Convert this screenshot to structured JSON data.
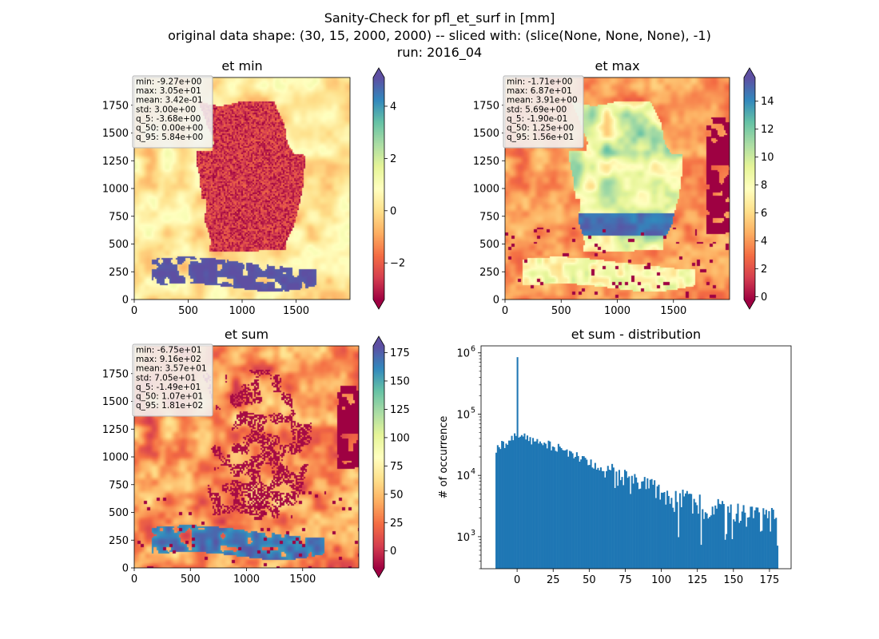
{
  "figure": {
    "suptitle": [
      "Sanity-Check for pfl_et_surf in [mm]",
      "original data shape: (30, 15, 2000, 2000) -- sliced with: (slice(None, None, None), -1)",
      "run: 2016_04"
    ]
  },
  "chart_data": [
    {
      "type": "heatmap",
      "title": "et min",
      "colormap": "Spectral",
      "colorbar_extend": "both",
      "xlim": [
        0,
        2000
      ],
      "ylim": [
        0,
        2000
      ],
      "xticks": [
        0,
        500,
        1000,
        1500
      ],
      "yticks": [
        0,
        250,
        500,
        750,
        1000,
        1250,
        1500,
        1750
      ],
      "clim": [
        -3.4,
        5.1
      ],
      "colorbar_ticks": [
        -2,
        0,
        2,
        4
      ],
      "stats": [
        "min: -9.27e+00",
        "max: 3.05e+01",
        "mean: 3.42e-01",
        "std: 3.00e+00",
        "q_5: -3.68e+00",
        "q_50: 0.00e+00",
        "q_95: 5.84e+00"
      ],
      "pattern": "min"
    },
    {
      "type": "heatmap",
      "title": "et max",
      "colormap": "Spectral",
      "colorbar_extend": "both",
      "xlim": [
        0,
        2000
      ],
      "ylim": [
        0,
        2000
      ],
      "xticks": [
        0,
        500,
        1000,
        1500
      ],
      "yticks": [
        0,
        250,
        500,
        750,
        1000,
        1250,
        1500,
        1750
      ],
      "clim": [
        -0.2,
        15.7
      ],
      "colorbar_ticks": [
        0,
        2,
        4,
        6,
        8,
        10,
        12,
        14
      ],
      "stats": [
        "min: -1.71e+00",
        "max: 6.87e+01",
        "mean: 3.91e+00",
        "std: 5.69e+00",
        "q_5: -1.90e-01",
        "q_50: 1.25e+00",
        "q_95: 1.56e+01"
      ],
      "pattern": "max"
    },
    {
      "type": "heatmap",
      "title": "et sum",
      "colormap": "Spectral",
      "colorbar_extend": "both",
      "xlim": [
        0,
        2000
      ],
      "ylim": [
        0,
        2000
      ],
      "xticks": [
        0,
        500,
        1000,
        1500
      ],
      "yticks": [
        0,
        250,
        500,
        750,
        1000,
        1250,
        1500,
        1750
      ],
      "clim": [
        -15,
        181
      ],
      "colorbar_ticks": [
        0,
        25,
        50,
        75,
        100,
        125,
        150,
        175
      ],
      "stats": [
        "min: -6.75e+01",
        "max: 9.16e+02",
        "mean: 3.57e+01",
        "std: 7.05e+01",
        "q_5: -1.49e+01",
        "q_50: 1.07e+01",
        "q_95: 1.81e+02"
      ],
      "pattern": "sum"
    },
    {
      "type": "bar",
      "title": "et sum - distribution",
      "ylabel": "# of occurrence",
      "xlabel": "",
      "y_scale": "log",
      "xlim": [
        -25,
        190
      ],
      "ylim": [
        300,
        1300000
      ],
      "xticks": [
        0,
        25,
        50,
        75,
        100,
        125,
        150,
        175
      ],
      "yticks": [
        {
          "value": 1000,
          "base": "10",
          "exp": "3"
        },
        {
          "value": 10000,
          "base": "10",
          "exp": "4"
        },
        {
          "value": 100000,
          "base": "10",
          "exp": "5"
        },
        {
          "value": 1000000,
          "base": "10",
          "exp": "6"
        }
      ],
      "bar_color": "#1f77b4",
      "range": [
        -15,
        181
      ],
      "bins": 200,
      "spike": {
        "x": 0,
        "count": 850000
      },
      "profile": [
        [
          -15,
          28000
        ],
        [
          -5,
          36000
        ],
        [
          0,
          45000
        ],
        [
          10,
          38000
        ],
        [
          25,
          30000
        ],
        [
          40,
          22000
        ],
        [
          50,
          16000
        ],
        [
          60,
          12000
        ],
        [
          75,
          9000
        ],
        [
          90,
          7000
        ],
        [
          100,
          5500
        ],
        [
          110,
          4500
        ],
        [
          125,
          3500
        ],
        [
          140,
          3000
        ],
        [
          150,
          2500
        ],
        [
          165,
          2200
        ],
        [
          181,
          2000
        ]
      ]
    }
  ]
}
